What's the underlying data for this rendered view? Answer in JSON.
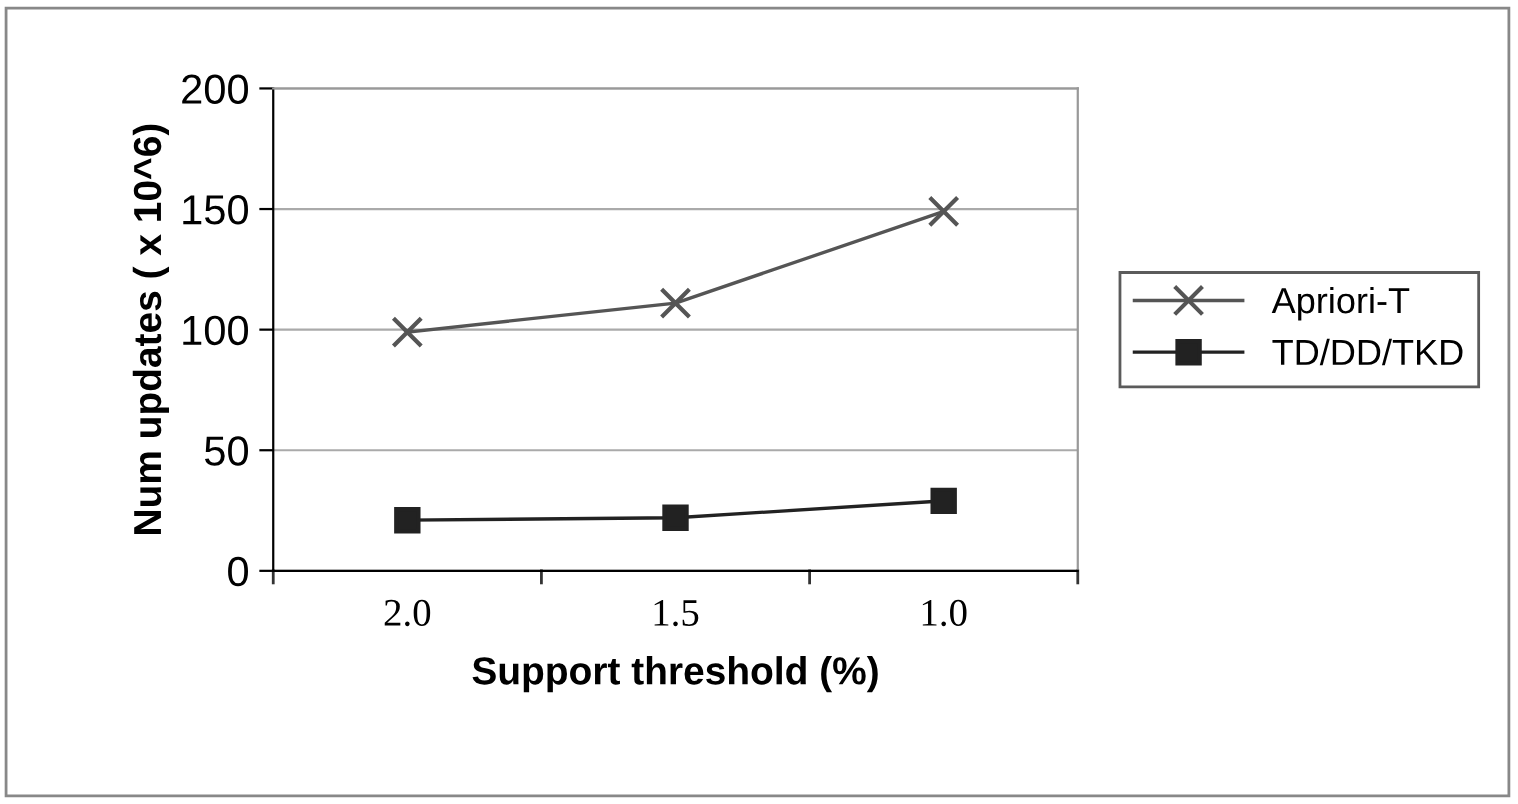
{
  "chart_data": {
    "type": "line",
    "xlabel": "Support threshold (%)",
    "ylabel": "Num updates ( x 10^6)",
    "categories": [
      "2.0",
      "1.5",
      "1.0"
    ],
    "series": [
      {
        "name": "Apriori-T",
        "color": "#555555",
        "marker": "cross",
        "values": [
          99,
          111,
          149
        ]
      },
      {
        "name": "TD/DD/TKD",
        "color": "#222222",
        "marker": "square",
        "values": [
          21,
          22,
          29
        ]
      }
    ],
    "ylim": [
      0,
      200
    ],
    "yticks": [
      0,
      50,
      100,
      150,
      200
    ],
    "grid": "y",
    "legend": "right"
  }
}
